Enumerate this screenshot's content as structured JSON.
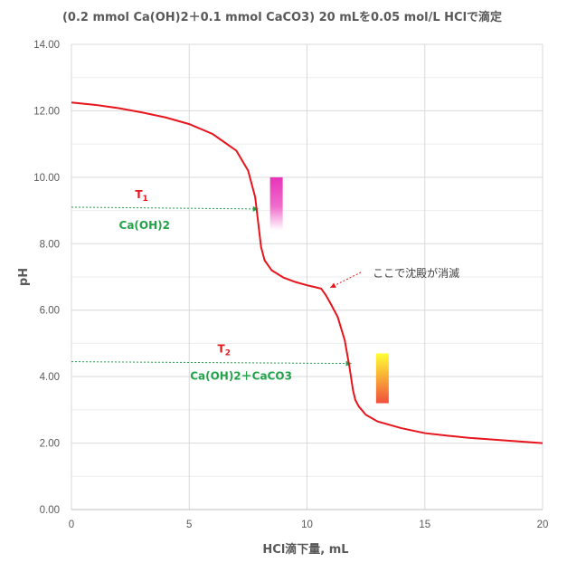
{
  "chart_data": {
    "type": "line",
    "title": "(0.2 mmol Ca(OH)2＋0.1 mmol CaCO3) 20 mLを0.05 mol/L HClで滴定",
    "xlabel": "HCl滴下量, mL",
    "ylabel": "pH",
    "xlim": [
      0,
      20
    ],
    "ylim": [
      0,
      14
    ],
    "x_ticks": [
      "0",
      "5",
      "10",
      "15",
      "20"
    ],
    "y_ticks": [
      "0.00",
      "2.00",
      "4.00",
      "6.00",
      "8.00",
      "10.00",
      "12.00",
      "14.00"
    ],
    "grid": true,
    "series": [
      {
        "color": "#e8141c",
        "x": [
          0,
          1,
          2,
          3,
          4,
          5,
          6,
          7,
          7.5,
          7.8,
          7.95,
          8.05,
          8.2,
          8.5,
          9,
          9.5,
          10,
          10.3,
          10.6,
          10.8,
          11,
          11.3,
          11.6,
          11.8,
          11.95,
          12.05,
          12.2,
          12.5,
          13,
          14,
          15,
          16,
          17,
          18,
          19,
          20
        ],
        "y": [
          12.25,
          12.18,
          12.08,
          11.95,
          11.8,
          11.6,
          11.3,
          10.8,
          10.2,
          9.4,
          8.5,
          7.9,
          7.5,
          7.2,
          6.98,
          6.85,
          6.75,
          6.7,
          6.65,
          6.45,
          6.2,
          5.8,
          5.1,
          4.3,
          3.6,
          3.3,
          3.1,
          2.85,
          2.65,
          2.45,
          2.3,
          2.22,
          2.15,
          2.1,
          2.05,
          2.0
        ]
      }
    ],
    "annotations": {
      "t1": {
        "main": "T",
        "sub": "1",
        "x_start": 0,
        "x_end": 8.05,
        "y": 9.1,
        "arrow_color": "#22a34a"
      },
      "t1_species": "Ca(OH)2",
      "t2": {
        "main": "T",
        "sub": "2",
        "x_start": 0,
        "x_end": 12.0,
        "y": 4.45,
        "arrow_color": "#22a34a"
      },
      "t2_species": "Ca(OH)2＋CaCO3",
      "precipitate_note": "ここで沈殿が消滅",
      "precipitate_point": {
        "x": 10.6,
        "y": 6.65
      },
      "indicator_1": {
        "x": 8.7,
        "y_top": 10.0,
        "y_bottom": 8.4,
        "color_top": "#e833b8",
        "color_bottom": "#ffffff"
      },
      "indicator_2": {
        "x": 13.2,
        "y_top": 4.7,
        "y_bottom": 3.2,
        "color_top": "#ffff33",
        "color_bottom": "#f0503c"
      }
    }
  }
}
